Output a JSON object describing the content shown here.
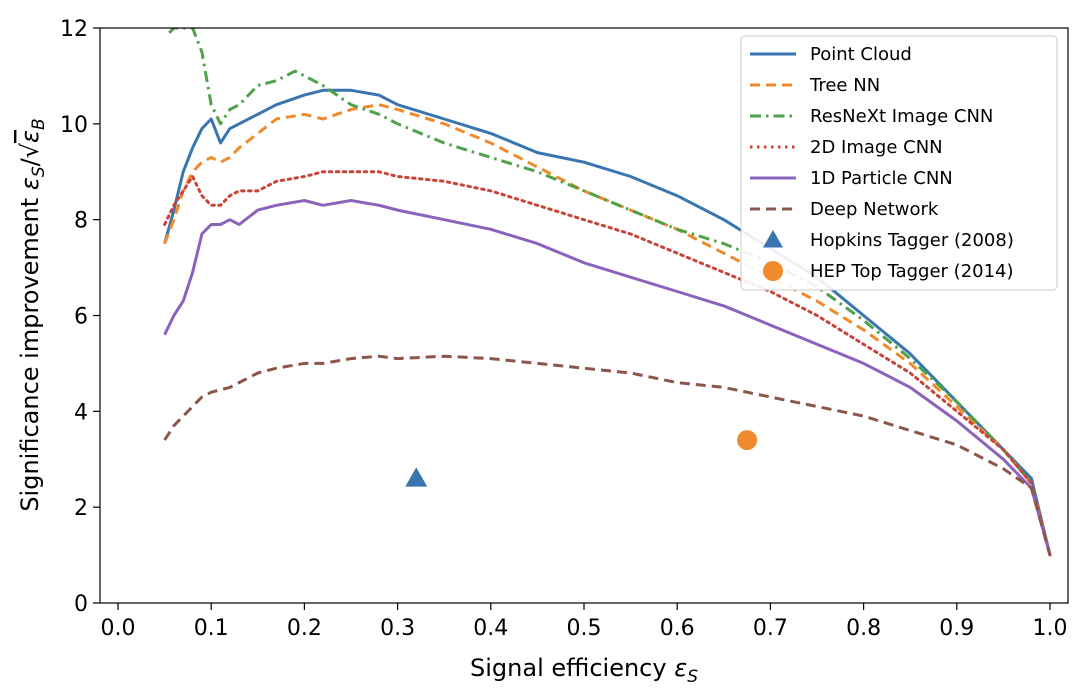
{
  "chart_data": {
    "type": "line",
    "xlabel_main": "Signal efficiency ",
    "xlabel_sym": "ε",
    "xlabel_sub": "S",
    "ylabel_main": "Significance improvement ",
    "ylabel_sym1": "ε",
    "ylabel_sub1": "S",
    "ylabel_div": "/√",
    "ylabel_sym2": "ε",
    "ylabel_sub2": "B",
    "xlim": [
      0.0,
      1.0
    ],
    "ylim": [
      0,
      12
    ],
    "xticks": [
      "0.0",
      "0.1",
      "0.2",
      "0.3",
      "0.4",
      "0.5",
      "0.6",
      "0.7",
      "0.8",
      "0.9",
      "1.0"
    ],
    "yticks": [
      "0",
      "2",
      "4",
      "6",
      "8",
      "10",
      "12"
    ],
    "legend_position": "top-right",
    "series": [
      {
        "name": "Point Cloud",
        "color": "#3a75b0",
        "style": "solid",
        "x": [
          0.05,
          0.06,
          0.07,
          0.08,
          0.09,
          0.1,
          0.11,
          0.12,
          0.13,
          0.15,
          0.17,
          0.2,
          0.22,
          0.25,
          0.28,
          0.3,
          0.35,
          0.4,
          0.45,
          0.5,
          0.55,
          0.6,
          0.65,
          0.7,
          0.75,
          0.8,
          0.85,
          0.9,
          0.95,
          0.98,
          1.0
        ],
        "y": [
          7.5,
          8.2,
          9.0,
          9.5,
          9.9,
          10.1,
          9.6,
          9.9,
          10.0,
          10.2,
          10.4,
          10.6,
          10.7,
          10.7,
          10.6,
          10.4,
          10.1,
          9.8,
          9.4,
          9.2,
          8.9,
          8.5,
          8.0,
          7.4,
          6.8,
          6.0,
          5.2,
          4.2,
          3.2,
          2.6,
          1.0
        ]
      },
      {
        "name": "Tree NN",
        "color": "#f08a2c",
        "style": "dashed",
        "x": [
          0.05,
          0.06,
          0.07,
          0.08,
          0.09,
          0.1,
          0.11,
          0.12,
          0.13,
          0.15,
          0.17,
          0.2,
          0.22,
          0.25,
          0.28,
          0.3,
          0.35,
          0.4,
          0.45,
          0.5,
          0.55,
          0.6,
          0.65,
          0.7,
          0.75,
          0.8,
          0.85,
          0.9,
          0.95,
          0.98,
          1.0
        ],
        "y": [
          7.5,
          8.0,
          8.6,
          9.0,
          9.2,
          9.3,
          9.2,
          9.3,
          9.5,
          9.8,
          10.1,
          10.2,
          10.1,
          10.3,
          10.4,
          10.3,
          10.0,
          9.6,
          9.1,
          8.6,
          8.2,
          7.8,
          7.3,
          6.8,
          6.3,
          5.7,
          5.0,
          4.1,
          3.2,
          2.5,
          1.0
        ]
      },
      {
        "name": "ResNeXt Image CNN",
        "color": "#4ea24a",
        "style": "dashdot",
        "x": [
          0.055,
          0.06,
          0.07,
          0.08,
          0.09,
          0.1,
          0.11,
          0.12,
          0.13,
          0.15,
          0.17,
          0.19,
          0.22,
          0.25,
          0.28,
          0.3,
          0.35,
          0.4,
          0.45,
          0.5,
          0.55,
          0.6,
          0.65,
          0.7,
          0.75,
          0.8,
          0.85,
          0.9,
          0.95,
          0.98,
          1.0
        ],
        "y": [
          11.9,
          12.0,
          12.0,
          12.0,
          11.5,
          10.4,
          10.0,
          10.3,
          10.4,
          10.8,
          10.9,
          11.1,
          10.8,
          10.4,
          10.2,
          10.0,
          9.6,
          9.3,
          9.0,
          8.6,
          8.2,
          7.8,
          7.5,
          7.1,
          6.6,
          5.9,
          5.1,
          4.2,
          3.2,
          2.5,
          1.0
        ]
      },
      {
        "name": "2D Image CNN",
        "color": "#c9453a",
        "style": "dotted",
        "x": [
          0.05,
          0.06,
          0.07,
          0.08,
          0.09,
          0.1,
          0.11,
          0.12,
          0.13,
          0.15,
          0.17,
          0.2,
          0.22,
          0.25,
          0.28,
          0.3,
          0.35,
          0.4,
          0.45,
          0.5,
          0.55,
          0.6,
          0.65,
          0.7,
          0.75,
          0.8,
          0.85,
          0.9,
          0.95,
          0.98,
          1.0
        ],
        "y": [
          7.9,
          8.3,
          8.6,
          8.9,
          8.5,
          8.3,
          8.3,
          8.5,
          8.6,
          8.6,
          8.8,
          8.9,
          9.0,
          9.0,
          9.0,
          8.9,
          8.8,
          8.6,
          8.3,
          8.0,
          7.7,
          7.3,
          6.9,
          6.5,
          6.0,
          5.4,
          4.8,
          4.0,
          3.2,
          2.5,
          1.0
        ]
      },
      {
        "name": "1D Particle CNN",
        "color": "#8a63bd",
        "style": "solid",
        "x": [
          0.05,
          0.06,
          0.07,
          0.08,
          0.09,
          0.1,
          0.11,
          0.12,
          0.13,
          0.15,
          0.17,
          0.2,
          0.22,
          0.25,
          0.28,
          0.3,
          0.35,
          0.4,
          0.45,
          0.5,
          0.55,
          0.6,
          0.65,
          0.7,
          0.75,
          0.8,
          0.85,
          0.9,
          0.95,
          0.98,
          1.0
        ],
        "y": [
          5.6,
          6.0,
          6.3,
          6.9,
          7.7,
          7.9,
          7.9,
          8.0,
          7.9,
          8.2,
          8.3,
          8.4,
          8.3,
          8.4,
          8.3,
          8.2,
          8.0,
          7.8,
          7.5,
          7.1,
          6.8,
          6.5,
          6.2,
          5.8,
          5.4,
          5.0,
          4.5,
          3.8,
          3.0,
          2.4,
          1.0
        ]
      },
      {
        "name": "Deep Network",
        "color": "#8c564b",
        "style": "dashed",
        "x": [
          0.05,
          0.06,
          0.07,
          0.08,
          0.09,
          0.1,
          0.12,
          0.15,
          0.17,
          0.2,
          0.22,
          0.25,
          0.28,
          0.3,
          0.35,
          0.4,
          0.45,
          0.5,
          0.55,
          0.6,
          0.65,
          0.7,
          0.75,
          0.8,
          0.85,
          0.9,
          0.95,
          0.98,
          1.0
        ],
        "y": [
          3.4,
          3.7,
          3.9,
          4.1,
          4.3,
          4.4,
          4.5,
          4.8,
          4.9,
          5.0,
          5.0,
          5.1,
          5.15,
          5.1,
          5.15,
          5.1,
          5.0,
          4.9,
          4.8,
          4.6,
          4.5,
          4.3,
          4.1,
          3.9,
          3.6,
          3.3,
          2.8,
          2.4,
          1.0
        ]
      }
    ],
    "markers": [
      {
        "name": "Hopkins Tagger (2008)",
        "shape": "triangle",
        "color": "#3a75b0",
        "x": 0.32,
        "y": 2.6
      },
      {
        "name": "HEP Top Tagger (2014)",
        "shape": "circle",
        "color": "#f08a2c",
        "x": 0.675,
        "y": 3.4
      }
    ]
  }
}
